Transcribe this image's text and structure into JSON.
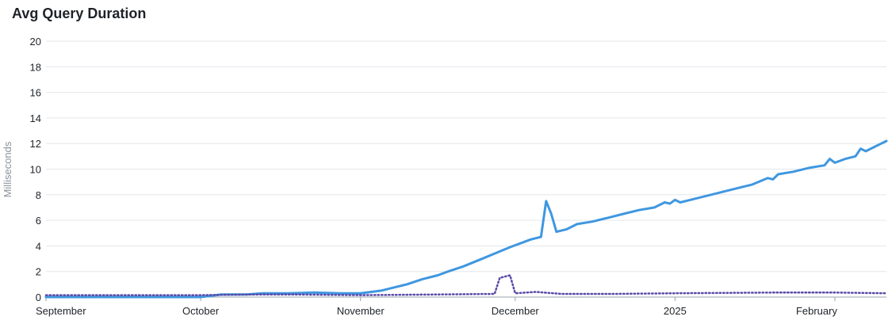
{
  "chart_data": {
    "type": "line",
    "title": "Avg Query Duration",
    "xlabel": "",
    "ylabel": "Milliseconds",
    "ylim": [
      0,
      20
    ],
    "yticks": [
      0,
      2,
      4,
      6,
      8,
      10,
      12,
      14,
      16,
      18,
      20
    ],
    "xlim": [
      "2024-09-01",
      "2025-02-11"
    ],
    "xticks": [
      {
        "date": "2024-09-01",
        "label": "September"
      },
      {
        "date": "2024-10-01",
        "label": "October"
      },
      {
        "date": "2024-11-01",
        "label": "November"
      },
      {
        "date": "2024-12-01",
        "label": "December"
      },
      {
        "date": "2025-01-01",
        "label": "2025"
      },
      {
        "date": "2025-02-01",
        "label": "February"
      }
    ],
    "grid": true,
    "legend": "none",
    "series": [
      {
        "color": "#3f97e0",
        "style": "solid",
        "points": [
          [
            "2024-09-01",
            0.0
          ],
          [
            "2024-10-01",
            0.0
          ],
          [
            "2024-10-05",
            0.2
          ],
          [
            "2024-10-10",
            0.2
          ],
          [
            "2024-10-13",
            0.3
          ],
          [
            "2024-10-18",
            0.3
          ],
          [
            "2024-10-23",
            0.35
          ],
          [
            "2024-10-28",
            0.3
          ],
          [
            "2024-11-01",
            0.3
          ],
          [
            "2024-11-05",
            0.5
          ],
          [
            "2024-11-07",
            0.7
          ],
          [
            "2024-11-10",
            1.0
          ],
          [
            "2024-11-13",
            1.4
          ],
          [
            "2024-11-16",
            1.7
          ],
          [
            "2024-11-18",
            2.0
          ],
          [
            "2024-11-21",
            2.4
          ],
          [
            "2024-11-24",
            2.9
          ],
          [
            "2024-11-27",
            3.4
          ],
          [
            "2024-11-30",
            3.9
          ],
          [
            "2024-12-02",
            4.2
          ],
          [
            "2024-12-04",
            4.5
          ],
          [
            "2024-12-06",
            4.7
          ],
          [
            "2024-12-07",
            7.5
          ],
          [
            "2024-12-08",
            6.5
          ],
          [
            "2024-12-09",
            5.1
          ],
          [
            "2024-12-11",
            5.3
          ],
          [
            "2024-12-13",
            5.7
          ],
          [
            "2024-12-16",
            5.9
          ],
          [
            "2024-12-19",
            6.2
          ],
          [
            "2024-12-22",
            6.5
          ],
          [
            "2024-12-25",
            6.8
          ],
          [
            "2024-12-28",
            7.0
          ],
          [
            "2024-12-30",
            7.4
          ],
          [
            "2024-12-31",
            7.3
          ],
          [
            "2025-01-01",
            7.6
          ],
          [
            "2025-01-02",
            7.4
          ],
          [
            "2025-01-04",
            7.6
          ],
          [
            "2025-01-07",
            7.9
          ],
          [
            "2025-01-10",
            8.2
          ],
          [
            "2025-01-13",
            8.5
          ],
          [
            "2025-01-16",
            8.8
          ],
          [
            "2025-01-19",
            9.3
          ],
          [
            "2025-01-20",
            9.2
          ],
          [
            "2025-01-21",
            9.6
          ],
          [
            "2025-01-24",
            9.8
          ],
          [
            "2025-01-27",
            10.1
          ],
          [
            "2025-01-30",
            10.3
          ],
          [
            "2025-01-31",
            10.8
          ],
          [
            "2025-02-01",
            10.5
          ],
          [
            "2025-02-03",
            10.8
          ],
          [
            "2025-02-05",
            11.0
          ],
          [
            "2025-02-06",
            11.6
          ],
          [
            "2025-02-07",
            11.4
          ],
          [
            "2025-02-09",
            11.8
          ],
          [
            "2025-02-10",
            12.0
          ],
          [
            "2025-02-11",
            12.2
          ]
        ]
      },
      {
        "color": "#5a4aa8",
        "style": "dotted",
        "points": [
          [
            "2024-09-01",
            0.15
          ],
          [
            "2024-10-01",
            0.15
          ],
          [
            "2024-10-10",
            0.2
          ],
          [
            "2024-10-20",
            0.2
          ],
          [
            "2024-11-01",
            0.15
          ],
          [
            "2024-11-15",
            0.2
          ],
          [
            "2024-11-27",
            0.25
          ],
          [
            "2024-11-28",
            1.5
          ],
          [
            "2024-11-30",
            1.7
          ],
          [
            "2024-12-01",
            0.3
          ],
          [
            "2024-12-05",
            0.4
          ],
          [
            "2024-12-10",
            0.25
          ],
          [
            "2024-12-20",
            0.25
          ],
          [
            "2025-01-01",
            0.3
          ],
          [
            "2025-01-20",
            0.35
          ],
          [
            "2025-02-01",
            0.35
          ],
          [
            "2025-02-11",
            0.3
          ]
        ]
      }
    ]
  }
}
